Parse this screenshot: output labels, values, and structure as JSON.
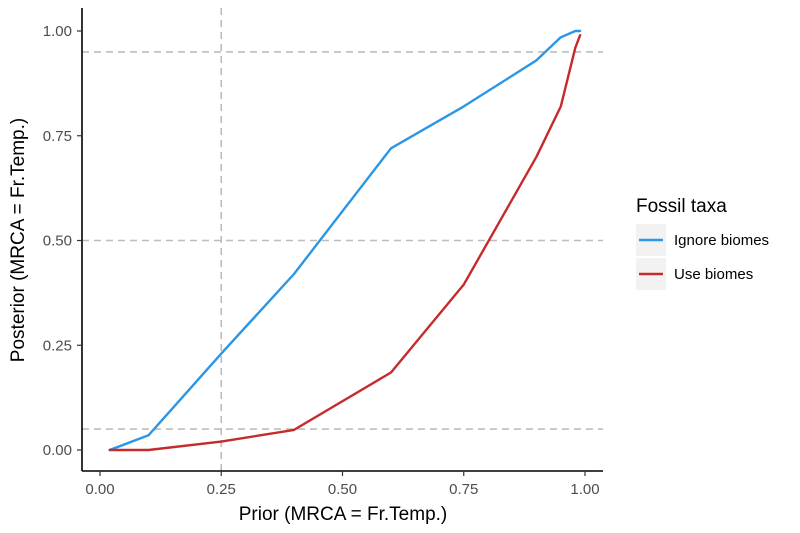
{
  "chart_data": {
    "type": "line",
    "xlabel": "Prior (MRCA = Fr.Temp.)",
    "ylabel": "Posterior (MRCA = Fr.Temp.)",
    "xlim": [
      0,
      1
    ],
    "ylim": [
      0,
      1
    ],
    "x_ticks": [
      "0.00",
      "0.25",
      "0.50",
      "0.75",
      "1.00"
    ],
    "y_ticks": [
      "0.00",
      "0.25",
      "0.50",
      "0.75",
      "1.00"
    ],
    "grid": false,
    "reference_lines": {
      "horizontal": [
        0.05,
        0.5,
        0.95
      ],
      "vertical": [
        0.25
      ]
    },
    "legend": {
      "title": "Fossil taxa",
      "placement": "right",
      "items": [
        {
          "label": "Ignore biomes",
          "color": "#2b95e6"
        },
        {
          "label": "Use biomes",
          "color": "#c62b2b"
        }
      ]
    },
    "series": [
      {
        "name": "Ignore biomes",
        "color": "#2b95e6",
        "x": [
          0.02,
          0.1,
          0.25,
          0.4,
          0.6,
          0.75,
          0.9,
          0.95,
          0.98,
          0.99
        ],
        "y": [
          0.0,
          0.035,
          0.23,
          0.42,
          0.72,
          0.82,
          0.93,
          0.985,
          1.0,
          1.0
        ]
      },
      {
        "name": "Use biomes",
        "color": "#c62b2b",
        "x": [
          0.02,
          0.1,
          0.25,
          0.4,
          0.6,
          0.75,
          0.9,
          0.95,
          0.98,
          0.99
        ],
        "y": [
          0.0,
          0.0,
          0.02,
          0.048,
          0.185,
          0.395,
          0.7,
          0.82,
          0.96,
          0.99
        ]
      }
    ]
  }
}
